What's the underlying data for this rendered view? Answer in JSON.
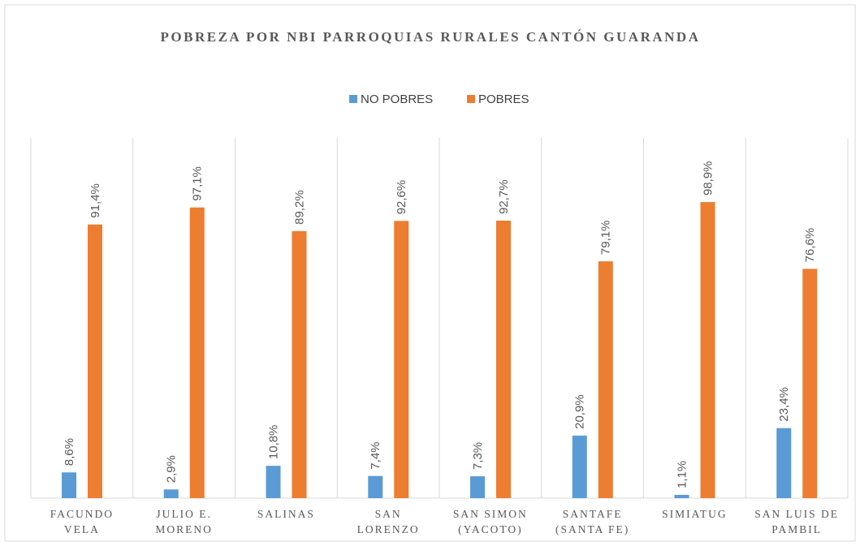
{
  "chart_data": {
    "type": "bar",
    "title": "POBREZA POR NBI PARROQUIAS RURALES CANTÓN GUARANDA",
    "categories": [
      "FACUNDO VELA",
      "JULIO E. MORENO",
      "SALINAS",
      "SAN LORENZO",
      "SAN SIMON (YACOTO)",
      "SANTAFE (SANTA FE)",
      "SIMIATUG",
      "SAN LUIS DE PAMBIL"
    ],
    "series": [
      {
        "name": "NO POBRES",
        "color": "#5b9bd5",
        "values": [
          8.6,
          2.9,
          10.8,
          7.4,
          7.3,
          20.9,
          1.1,
          23.4
        ],
        "value_labels": [
          "8,6%",
          "2,9%",
          "10,8%",
          "7,4%",
          "7,3%",
          "20,9%",
          "1,1%",
          "23,4%"
        ]
      },
      {
        "name": "POBRES",
        "color": "#ed7d31",
        "values": [
          91.4,
          97.1,
          89.2,
          92.6,
          92.7,
          79.1,
          98.9,
          76.6
        ],
        "value_labels": [
          "91,4%",
          "97,1%",
          "89,2%",
          "92,6%",
          "92,7%",
          "79,1%",
          "98,9%",
          "76,6%"
        ]
      }
    ],
    "legend": "top"
  }
}
